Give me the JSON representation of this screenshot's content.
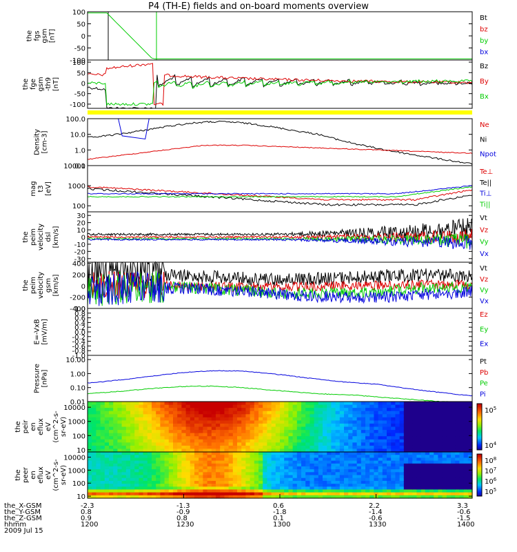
{
  "title": "P4 (TH-E) fields and on-board moments overview",
  "colors": {
    "black": "#000000",
    "red": "#dd0000",
    "green": "#00cc00",
    "blue": "#0000dd",
    "orange": "#ffbb00",
    "yellow": "#ffff00"
  },
  "chart_data": [
    {
      "type": "line",
      "id": "fgs",
      "ylabel": [
        "the",
        "fgs",
        "gsm",
        "[nT]"
      ],
      "yticks": [
        "100",
        "50",
        "0",
        "-50",
        "-100"
      ],
      "ylim": [
        -100,
        100
      ],
      "series": [
        {
          "name": "Bt",
          "color": "#000000"
        },
        {
          "name": "bz",
          "color": "#dd0000"
        },
        {
          "name": "by",
          "color": "#00cc00"
        },
        {
          "name": "bx",
          "color": "#0000dd"
        }
      ]
    },
    {
      "type": "line",
      "id": "fgs_detail",
      "ylabel": [
        "the",
        "fge",
        "gsm",
        "-th9",
        "[nT]"
      ],
      "yticks": [
        "100",
        "50",
        "0",
        "-50",
        "-100"
      ],
      "ylim": [
        -120,
        110
      ],
      "series": [
        {
          "name": "Bz",
          "color": "#000000"
        },
        {
          "name": "By",
          "color": "#dd0000"
        },
        {
          "name": "Bx",
          "color": "#00cc00"
        }
      ]
    },
    {
      "type": "line",
      "id": "density",
      "ylabel": [
        "Density",
        "[cm-3]"
      ],
      "yticks": [
        "100.0",
        "10.0",
        "1.0",
        "0.1"
      ],
      "yscale": "log",
      "ylim": [
        0.1,
        100
      ],
      "series": [
        {
          "name": "Ne",
          "color": "#dd0000"
        },
        {
          "name": "Ni",
          "color": "#000000"
        },
        {
          "name": "Npot",
          "color": "#0000dd"
        }
      ]
    },
    {
      "type": "line",
      "id": "temperature",
      "ylabel": [
        "mag",
        "t3",
        "[eV]"
      ],
      "yticks": [
        "10000",
        "1000",
        "100"
      ],
      "yscale": "log",
      "ylim": [
        50,
        10000
      ],
      "series": [
        {
          "name": "Te⊥",
          "color": "#dd0000"
        },
        {
          "name": "Te||",
          "color": "#000000"
        },
        {
          "name": "Ti⊥",
          "color": "#0000dd"
        },
        {
          "name": "Ti||",
          "color": "#00cc00"
        }
      ]
    },
    {
      "type": "line",
      "id": "peim_velocity_dsl",
      "ylabel": [
        "the",
        "peim",
        "velocity",
        "dsl",
        "[km/s]"
      ],
      "yticks": [
        "30",
        "20",
        "10",
        "0",
        "-10",
        "-20",
        "-30"
      ],
      "ylim": [
        -35,
        35
      ],
      "series": [
        {
          "name": "Vt",
          "color": "#000000"
        },
        {
          "name": "Vz",
          "color": "#dd0000"
        },
        {
          "name": "Vy",
          "color": "#00cc00"
        },
        {
          "name": "Vx",
          "color": "#0000dd"
        }
      ]
    },
    {
      "type": "line",
      "id": "peim_velocity_gsm",
      "ylabel": [
        "the",
        "peim",
        "velocity",
        "gsm",
        "[km/s]"
      ],
      "yticks": [
        "400",
        "200",
        "0",
        "-200",
        "-400"
      ],
      "ylim": [
        -400,
        420
      ],
      "series": [
        {
          "name": "Vt",
          "color": "#000000"
        },
        {
          "name": "Vz",
          "color": "#dd0000"
        },
        {
          "name": "Vy",
          "color": "#00cc00"
        },
        {
          "name": "Vx",
          "color": "#0000dd"
        }
      ]
    },
    {
      "type": "line",
      "id": "efield",
      "ylabel": [
        "E=-VxB",
        "[mV/m]"
      ],
      "yticks": [
        "1.0",
        "0.8",
        "0.6",
        "0.4",
        "0.2",
        "0.0",
        "-0.2",
        "-0.4",
        "-0.6",
        "-0.8",
        "-1.0"
      ],
      "ylim": [
        -1,
        1
      ],
      "series": [
        {
          "name": "Ez",
          "color": "#dd0000"
        },
        {
          "name": "Ey",
          "color": "#00cc00"
        },
        {
          "name": "Ex",
          "color": "#0000dd"
        }
      ]
    },
    {
      "type": "line",
      "id": "pressure",
      "ylabel": [
        "Pressure",
        "[nPa]"
      ],
      "yticks": [
        "10.00",
        "1.00",
        "0.10",
        "0.01"
      ],
      "yscale": "log",
      "ylim": [
        0.01,
        20
      ],
      "series": [
        {
          "name": "Pt",
          "color": "#000000"
        },
        {
          "name": "Pb",
          "color": "#dd0000"
        },
        {
          "name": "Pe",
          "color": "#00cc00"
        },
        {
          "name": "Pi",
          "color": "#0000dd"
        }
      ]
    },
    {
      "type": "heatmap",
      "id": "peir_eflux",
      "ylabel": [
        "the",
        "peir",
        "en",
        "eflux",
        "eV",
        "(cm^2-s-",
        "sr-eV)"
      ],
      "yticks": [
        "10000",
        "1000",
        "100",
        "10"
      ],
      "yscale": "log",
      "ylim": [
        7,
        25000
      ],
      "colorbar_ticks": [
        "10^5",
        "10^4"
      ]
    },
    {
      "type": "heatmap",
      "id": "peer_eflux",
      "ylabel": [
        "the",
        "peer",
        "en",
        "eflux",
        "eV",
        "(cm^2-s-",
        "sr-eV)"
      ],
      "yticks": [
        "10000",
        "1000",
        "100",
        "10"
      ],
      "yscale": "log",
      "ylim": [
        7,
        25000
      ],
      "colorbar_ticks": [
        "10^8",
        "10^7",
        "10^6",
        "10^5"
      ]
    }
  ],
  "ephemeris": {
    "rows": [
      {
        "label": "the_X-GSM",
        "values": [
          "-2.3",
          "-1.3",
          "0.6",
          "2.2",
          "3.3"
        ]
      },
      {
        "label": "the_Y-GSM",
        "values": [
          "0.8",
          "-0.9",
          "-1.8",
          "-1.4",
          "-0.6"
        ]
      },
      {
        "label": "the_Z-GSM",
        "values": [
          "0.9",
          "0.8",
          "0.1",
          "-0.6",
          "-1.5"
        ]
      },
      {
        "label": "hhmm",
        "values": [
          "1200",
          "1230",
          "1300",
          "1330",
          "1400"
        ]
      }
    ],
    "date": "2009 Jul 15"
  }
}
